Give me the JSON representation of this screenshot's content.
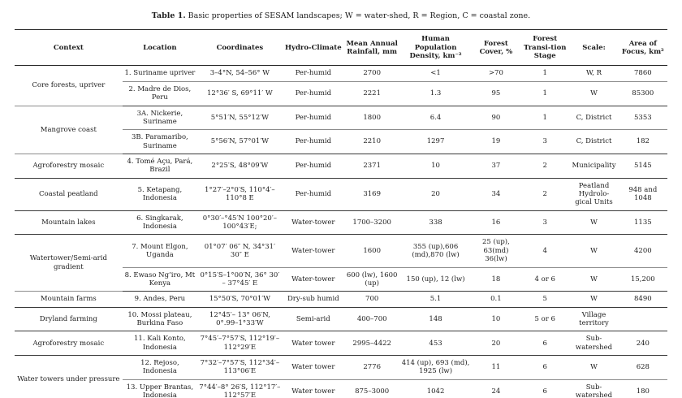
{
  "caption": {
    "label": "Table 1.",
    "text": "Basic properties of SESAM landscapes; W = water-shed, R = Region, C = coastal zone."
  },
  "table": {
    "columns": [
      "Context",
      "Location",
      "Coordinates",
      "Hydro-Climate",
      "Mean Annual Rainfall, mm",
      "Human Population Density, km⁻²",
      "Forest Cover, %",
      "Forest Transi-tion Stage",
      "Scale:",
      "Area of Focus, km²"
    ],
    "groups": [
      {
        "context": "Core forests, upriver",
        "rows": [
          {
            "location": "1. Suriname upriver",
            "coordinates": "3–4°N, 54–56° W",
            "hydro_climate": "Per-humid",
            "rainfall_mm": "2700",
            "population_density": "<1",
            "forest_cover_pct": ">70",
            "transition_stage": "1",
            "scale": "W, R",
            "area_km2": "7860"
          },
          {
            "location": "2. Madre de Dios, Peru",
            "coordinates": "12°36′ S, 69°11′ W",
            "hydro_climate": "Per-humid",
            "rainfall_mm": "2221",
            "population_density": "1.3",
            "forest_cover_pct": "95",
            "transition_stage": "1",
            "scale": "W",
            "area_km2": "85300"
          }
        ]
      },
      {
        "context": "Mangrove coast",
        "rows": [
          {
            "location": "3A. Nickerie, Suriname",
            "coordinates": "5°51′N, 55°12′W",
            "hydro_climate": "Per-humid",
            "rainfall_mm": "1800",
            "population_density": "6.4",
            "forest_cover_pct": "90",
            "transition_stage": "1",
            "scale": "C, District",
            "area_km2": "5353"
          },
          {
            "location": "3B. Paramaribo, Suriname",
            "coordinates": "5°56′N, 57°01′W",
            "hydro_climate": "Per-humid",
            "rainfall_mm": "2210",
            "population_density": "1297",
            "forest_cover_pct": "19",
            "transition_stage": "3",
            "scale": "C, District",
            "area_km2": "182"
          }
        ]
      },
      {
        "context": "Agroforestry mosaic",
        "rows": [
          {
            "location": "4. Tomé Açu, Pará, Brazil",
            "coordinates": "2°25′S, 48°09′W",
            "hydro_climate": "Per-humid",
            "rainfall_mm": "2371",
            "population_density": "10",
            "forest_cover_pct": "37",
            "transition_stage": "2",
            "scale": "Municipality",
            "area_km2": "5145"
          }
        ]
      },
      {
        "context": "Coastal peatland",
        "rows": [
          {
            "location": "5. Ketapang, Indonesia",
            "coordinates": "1°27′–2°0′S, 110°4′–110°8 E",
            "hydro_climate": "Per-humid",
            "rainfall_mm": "3169",
            "population_density": "20",
            "forest_cover_pct": "34",
            "transition_stage": "2",
            "scale": "Peatland Hydrolo-gical Units",
            "area_km2": "948 and 1048"
          }
        ]
      },
      {
        "context": "Mountain lakes",
        "rows": [
          {
            "location": "6. Singkarak, Indonesia",
            "coordinates": "0°30′–°45′N 100°20′–100°43′E;",
            "hydro_climate": "Water-tower",
            "rainfall_mm": "1700–3200",
            "population_density": "338",
            "forest_cover_pct": "16",
            "transition_stage": "3",
            "scale": "W",
            "area_km2": "1135"
          }
        ]
      },
      {
        "context": "Watertower/Semi-arid gradient",
        "rows": [
          {
            "location": "7. Mount Elgon, Uganda",
            "coordinates": "01°07′ 06″ N, 34°31′ 30″ E",
            "hydro_climate": "Water-tower",
            "rainfall_mm": "1600",
            "population_density": "355 (up),606 (md),870 (lw)",
            "forest_cover_pct": "25 (up), 63(md) 36(lw)",
            "transition_stage": "4",
            "scale": "W",
            "area_km2": "4200"
          },
          {
            "location": "8. Ewaso Ng’iro, Mt Kenya",
            "coordinates": "0°15′S–1°00′N, 36° 30′ – 37°45′ E",
            "hydro_climate": "Water-tower",
            "rainfall_mm": "600 (lw), 1600 (up)",
            "population_density": "150 (up), 12 (lw)",
            "forest_cover_pct": "18",
            "transition_stage": "4 or 6",
            "scale": "W",
            "area_km2": "15,200"
          }
        ]
      },
      {
        "context": "Mountain farms",
        "rows": [
          {
            "location": "9. Andes, Peru",
            "coordinates": "15°50′S, 70°01′W",
            "hydro_climate": "Dry-sub humid",
            "rainfall_mm": "700",
            "population_density": "5.1",
            "forest_cover_pct": "0.1",
            "transition_stage": "5",
            "scale": "W",
            "area_km2": "8490"
          }
        ]
      },
      {
        "context": "Dryland farming",
        "rows": [
          {
            "location": "10. Mossi plateau, Burkina Faso",
            "coordinates": "12°45′– 13° 06′N, 0°.99–1°33′W",
            "hydro_climate": "Semi-arid",
            "rainfall_mm": "400–700",
            "population_density": "148",
            "forest_cover_pct": "10",
            "transition_stage": "5 or 6",
            "scale": "Village territory",
            "area_km2": ""
          }
        ]
      },
      {
        "context": "Agroforestry mosaic",
        "rows": [
          {
            "location": "11. Kali Konto, Indonesia",
            "coordinates": "7°45′–7°57′S, 112°19′–112°29′E",
            "hydro_climate": "Water tower",
            "rainfall_mm": "2995–4422",
            "population_density": "453",
            "forest_cover_pct": "20",
            "transition_stage": "6",
            "scale": "Sub-watershed",
            "area_km2": "240"
          }
        ]
      },
      {
        "context": "Water towers under pressure",
        "rows": [
          {
            "location": "12. Rejoso, Indonesia",
            "coordinates": "7°32′–7°57′S, 112°34′–113°06′E",
            "hydro_climate": "Water tower",
            "rainfall_mm": "2776",
            "population_density": "414 (up), 693 (md), 1925 (lw)",
            "forest_cover_pct": "11",
            "transition_stage": "6",
            "scale": "W",
            "area_km2": "628"
          },
          {
            "location": "13. Upper Brantas, Indonesia",
            "coordinates": "7°44′–8° 26′S, 112°17′–112°57′E",
            "hydro_climate": "Water tower",
            "rainfall_mm": "875–3000",
            "population_density": "1042",
            "forest_cover_pct": "24",
            "transition_stage": "6",
            "scale": "Sub-watershed",
            "area_km2": "180"
          }
        ]
      }
    ]
  }
}
